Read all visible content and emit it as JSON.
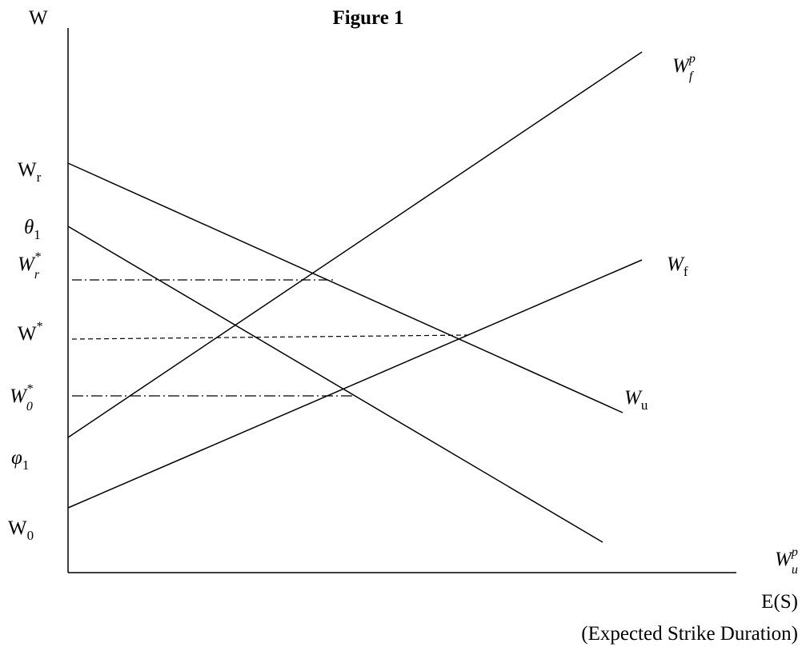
{
  "header": {
    "title": "Figure 1"
  },
  "axes": {
    "y_label": "W",
    "x_label": "E(S)",
    "x_note": "(Expected Strike Duration)"
  },
  "axis_labels": [
    {
      "base": "W",
      "sub": "r"
    },
    {
      "base": "θ",
      "sub": "1"
    },
    {
      "base": "W",
      "sup": "*",
      "sub": "r"
    },
    {
      "base": "W",
      "sup": "*"
    },
    {
      "base": "W",
      "sup": "*",
      "sub": "0"
    },
    {
      "base": "φ",
      "sub": "1"
    },
    {
      "base": "W",
      "sub": "0"
    }
  ],
  "curve_labels": [
    {
      "base": "W",
      "sup": "p",
      "sub": "f"
    },
    {
      "base": "W",
      "sub": "f"
    },
    {
      "base": "W",
      "sub": "u"
    },
    {
      "base": "W",
      "sup": "p",
      "sub": "u"
    }
  ]
}
